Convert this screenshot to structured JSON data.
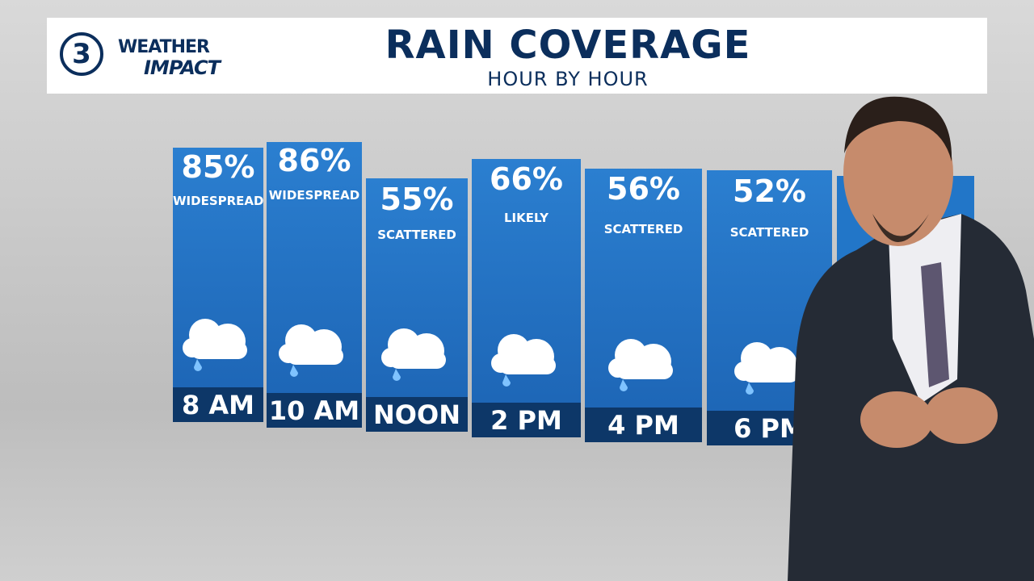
{
  "logo": {
    "channel": "3",
    "line1": "WEATHER",
    "line2": "IMPACT"
  },
  "header": {
    "title": "RAIN COVERAGE",
    "subtitle": "HOUR BY HOUR"
  },
  "cards": [
    {
      "percent": "85%",
      "label": "WIDESPREAD",
      "time": "8 AM"
    },
    {
      "percent": "86%",
      "label": "WIDESPREAD",
      "time": "10 AM"
    },
    {
      "percent": "55%",
      "label": "SCATTERED",
      "time": "NOON"
    },
    {
      "percent": "66%",
      "label": "LIKELY",
      "time": "2 PM"
    },
    {
      "percent": "56%",
      "label": "SCATTERED",
      "time": "4 PM"
    },
    {
      "percent": "52%",
      "label": "SCATTERED",
      "time": "6 PM"
    }
  ]
}
